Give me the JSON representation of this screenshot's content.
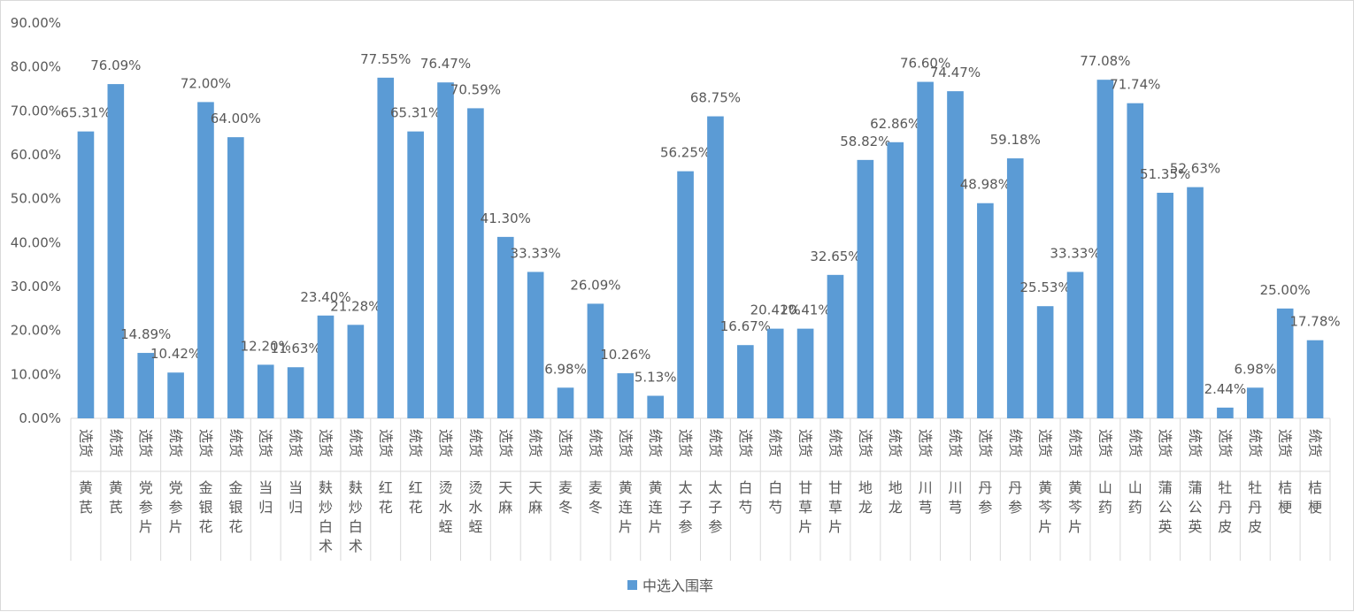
{
  "chart_data": {
    "type": "bar",
    "title": "",
    "xlabel": "",
    "ylabel": "",
    "ylim": [
      0,
      0.9
    ],
    "y_tick_labels": [
      "0.00%",
      "10.00%",
      "20.00%",
      "30.00%",
      "40.00%",
      "50.00%",
      "60.00%",
      "70.00%",
      "80.00%",
      "90.00%"
    ],
    "categories": [
      {
        "type": "选货",
        "name": "黄芪"
      },
      {
        "type": "统货",
        "name": "黄芪"
      },
      {
        "type": "选货",
        "name": "党参片"
      },
      {
        "type": "统货",
        "name": "党参片"
      },
      {
        "type": "选货",
        "name": "金银花"
      },
      {
        "type": "统货",
        "name": "金银花"
      },
      {
        "type": "选货",
        "name": "当归"
      },
      {
        "type": "统货",
        "name": "当归"
      },
      {
        "type": "选货",
        "name": "麸炒白术"
      },
      {
        "type": "统货",
        "name": "麸炒白术"
      },
      {
        "type": "选货",
        "name": "红花"
      },
      {
        "type": "统货",
        "name": "红花"
      },
      {
        "type": "选货",
        "name": "烫水蛭"
      },
      {
        "type": "统货",
        "name": "烫水蛭"
      },
      {
        "type": "选货",
        "name": "天麻"
      },
      {
        "type": "统货",
        "name": "天麻"
      },
      {
        "type": "选货",
        "name": "麦冬"
      },
      {
        "type": "统货",
        "name": "麦冬"
      },
      {
        "type": "选货",
        "name": "黄连片"
      },
      {
        "type": "统货",
        "name": "黄连片"
      },
      {
        "type": "选货",
        "name": "太子参"
      },
      {
        "type": "统货",
        "name": "太子参"
      },
      {
        "type": "选货",
        "name": "白芍"
      },
      {
        "type": "统货",
        "name": "白芍"
      },
      {
        "type": "选货",
        "name": "甘草片"
      },
      {
        "type": "统货",
        "name": "甘草片"
      },
      {
        "type": "选货",
        "name": "地龙"
      },
      {
        "type": "统货",
        "name": "地龙"
      },
      {
        "type": "选货",
        "name": "川芎"
      },
      {
        "type": "统货",
        "name": "川芎"
      },
      {
        "type": "选货",
        "name": "丹参"
      },
      {
        "type": "统货",
        "name": "丹参"
      },
      {
        "type": "选货",
        "name": "黄芩片"
      },
      {
        "type": "统货",
        "name": "黄芩片"
      },
      {
        "type": "选货",
        "name": "山药"
      },
      {
        "type": "统货",
        "name": "山药"
      },
      {
        "type": "选货",
        "name": "蒲公英"
      },
      {
        "type": "统货",
        "name": "蒲公英"
      },
      {
        "type": "选货",
        "name": "牡丹皮"
      },
      {
        "type": "统货",
        "name": "牡丹皮"
      },
      {
        "type": "选货",
        "name": "桔梗"
      },
      {
        "type": "统货",
        "name": "桔梗"
      }
    ],
    "series": [
      {
        "name": "中选入围率",
        "color": "#5b9bd5",
        "values": [
          0.6531,
          0.7609,
          0.1489,
          0.1042,
          0.72,
          0.64,
          0.122,
          0.1163,
          0.234,
          0.2128,
          0.7755,
          0.6531,
          0.7647,
          0.7059,
          0.413,
          0.3333,
          0.0698,
          0.2609,
          0.1026,
          0.0513,
          0.5625,
          0.6875,
          0.1667,
          0.2041,
          0.2041,
          0.3265,
          0.5882,
          0.6286,
          0.766,
          0.7447,
          0.4898,
          0.5918,
          0.2553,
          0.3333,
          0.7708,
          0.7174,
          0.5135,
          0.5263,
          0.0244,
          0.0698,
          0.25,
          0.1778
        ],
        "labels": [
          "65.31%",
          "76.09%",
          "14.89%",
          "10.42%",
          "72.00%",
          "64.00%",
          "12.20%",
          "11.63%",
          "23.40%",
          "21.28%",
          "77.55%",
          "65.31%",
          "76.47%",
          "70.59%",
          "41.30%",
          "33.33%",
          "6.98%",
          "26.09%",
          "10.26%",
          "5.13%",
          "56.25%",
          "68.75%",
          "16.67%",
          "20.41%",
          "20.41%",
          "32.65%",
          "58.82%",
          "62.86%",
          "76.60%",
          "74.47%",
          "48.98%",
          "59.18%",
          "25.53%",
          "33.33%",
          "77.08%",
          "71.74%",
          "51.35%",
          "52.63%",
          "2.44%",
          "6.98%",
          "25.00%",
          "17.78%"
        ]
      }
    ],
    "legend": {
      "position": "bottom",
      "label": "中选入围率"
    }
  }
}
